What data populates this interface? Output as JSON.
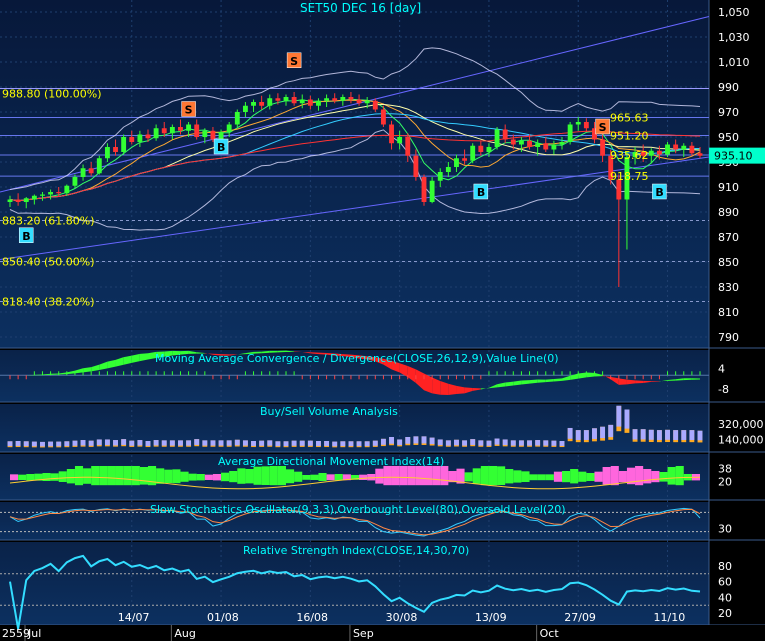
{
  "colors": {
    "bg_top": "#0a1a3a",
    "bg_bottom": "#0b2a55",
    "grid": "#2a4a7a",
    "title_text": "#00ffff",
    "axis_text": "#ffffff",
    "fib_text": "#ffff00",
    "up_candle": "#33ff33",
    "down_candle": "#ff3333",
    "channel": "#6666ff",
    "last_price_bg": "#00ffcc",
    "buy_label_bg": "#33ddff",
    "sell_label_bg": "#ff7733"
  },
  "chart_data": [
    {
      "type": "candlestick",
      "title": "SET50 DEC 16   [day]",
      "last_price": "935.10",
      "y_ticks": [
        "1,050",
        "1,030",
        "1,010",
        "990",
        "970",
        "950",
        "930",
        "910",
        "890",
        "870",
        "850",
        "830",
        "810",
        "790"
      ],
      "ylim": [
        780,
        1055
      ],
      "x_tick_labels": [
        "14/07",
        "01/08",
        "16/08",
        "30/08",
        "13/09",
        "27/09",
        "11/10"
      ],
      "x_month_labels": [
        "Jul",
        "Aug",
        "Sep",
        "Oct"
      ],
      "x_year_label": "2559",
      "fibonacci_levels": [
        {
          "label": "988.80 (100.00%)",
          "value": 988.8
        },
        {
          "label": "883.20 (61.80%)",
          "value": 883.2
        },
        {
          "label": "850.40 (50.00%)",
          "value": 850.4
        },
        {
          "label": "818.40 (38.20%)",
          "value": 818.4
        }
      ],
      "price_labels": [
        {
          "label": "965.63",
          "value": 965.63
        },
        {
          "label": "951.20",
          "value": 951.2
        },
        {
          "label": "935.62",
          "value": 935.62
        },
        {
          "label": "918.75",
          "value": 918.75
        }
      ],
      "signals": [
        {
          "label": "B",
          "bar": 2,
          "value": 871
        },
        {
          "label": "S",
          "bar": 35,
          "value": 1011
        },
        {
          "label": "B",
          "bar": 26,
          "value": 942
        },
        {
          "label": "S",
          "bar": 22,
          "value": 972
        },
        {
          "label": "B",
          "bar": 58,
          "value": 906
        },
        {
          "label": "S",
          "bar": 73,
          "value": 958
        },
        {
          "label": "B",
          "bar": 80,
          "value": 906
        }
      ],
      "candles": [
        {
          "o": 898,
          "h": 903,
          "l": 894,
          "c": 900
        },
        {
          "o": 900,
          "h": 905,
          "l": 895,
          "c": 898
        },
        {
          "o": 898,
          "h": 902,
          "l": 893,
          "c": 901
        },
        {
          "o": 900,
          "h": 904,
          "l": 896,
          "c": 903
        },
        {
          "o": 903,
          "h": 906,
          "l": 899,
          "c": 904
        },
        {
          "o": 904,
          "h": 908,
          "l": 900,
          "c": 906
        },
        {
          "o": 906,
          "h": 910,
          "l": 902,
          "c": 905
        },
        {
          "o": 905,
          "h": 912,
          "l": 903,
          "c": 911
        },
        {
          "o": 911,
          "h": 920,
          "l": 909,
          "c": 918
        },
        {
          "o": 918,
          "h": 928,
          "l": 915,
          "c": 925
        },
        {
          "o": 925,
          "h": 930,
          "l": 919,
          "c": 921
        },
        {
          "o": 921,
          "h": 935,
          "l": 920,
          "c": 933
        },
        {
          "o": 933,
          "h": 945,
          "l": 930,
          "c": 942
        },
        {
          "o": 942,
          "h": 948,
          "l": 935,
          "c": 938
        },
        {
          "o": 938,
          "h": 952,
          "l": 936,
          "c": 950
        },
        {
          "o": 950,
          "h": 955,
          "l": 944,
          "c": 946
        },
        {
          "o": 946,
          "h": 955,
          "l": 942,
          "c": 952
        },
        {
          "o": 952,
          "h": 956,
          "l": 946,
          "c": 949
        },
        {
          "o": 949,
          "h": 960,
          "l": 947,
          "c": 957
        },
        {
          "o": 957,
          "h": 962,
          "l": 950,
          "c": 953
        },
        {
          "o": 953,
          "h": 960,
          "l": 948,
          "c": 958
        },
        {
          "o": 958,
          "h": 964,
          "l": 952,
          "c": 955
        },
        {
          "o": 955,
          "h": 962,
          "l": 950,
          "c": 960
        },
        {
          "o": 960,
          "h": 964,
          "l": 948,
          "c": 950
        },
        {
          "o": 950,
          "h": 957,
          "l": 945,
          "c": 955
        },
        {
          "o": 955,
          "h": 958,
          "l": 946,
          "c": 948
        },
        {
          "o": 948,
          "h": 956,
          "l": 944,
          "c": 954
        },
        {
          "o": 954,
          "h": 962,
          "l": 950,
          "c": 960
        },
        {
          "o": 960,
          "h": 972,
          "l": 958,
          "c": 970
        },
        {
          "o": 970,
          "h": 978,
          "l": 966,
          "c": 975
        },
        {
          "o": 975,
          "h": 980,
          "l": 970,
          "c": 978
        },
        {
          "o": 978,
          "h": 983,
          "l": 972,
          "c": 975
        },
        {
          "o": 975,
          "h": 984,
          "l": 972,
          "c": 981
        },
        {
          "o": 981,
          "h": 985,
          "l": 976,
          "c": 979
        },
        {
          "o": 979,
          "h": 984,
          "l": 975,
          "c": 982
        },
        {
          "o": 982,
          "h": 986,
          "l": 975,
          "c": 977
        },
        {
          "o": 977,
          "h": 984,
          "l": 973,
          "c": 980
        },
        {
          "o": 980,
          "h": 983,
          "l": 972,
          "c": 975
        },
        {
          "o": 975,
          "h": 981,
          "l": 971,
          "c": 979
        },
        {
          "o": 979,
          "h": 984,
          "l": 974,
          "c": 981
        },
        {
          "o": 981,
          "h": 985,
          "l": 977,
          "c": 979
        },
        {
          "o": 979,
          "h": 984,
          "l": 975,
          "c": 982
        },
        {
          "o": 982,
          "h": 986,
          "l": 977,
          "c": 980
        },
        {
          "o": 980,
          "h": 984,
          "l": 975,
          "c": 977
        },
        {
          "o": 977,
          "h": 982,
          "l": 973,
          "c": 979
        },
        {
          "o": 979,
          "h": 981,
          "l": 970,
          "c": 972
        },
        {
          "o": 972,
          "h": 975,
          "l": 958,
          "c": 960
        },
        {
          "o": 960,
          "h": 963,
          "l": 940,
          "c": 945
        },
        {
          "o": 945,
          "h": 955,
          "l": 940,
          "c": 950
        },
        {
          "o": 950,
          "h": 953,
          "l": 930,
          "c": 935
        },
        {
          "o": 935,
          "h": 940,
          "l": 915,
          "c": 918
        },
        {
          "o": 918,
          "h": 920,
          "l": 895,
          "c": 898
        },
        {
          "o": 898,
          "h": 918,
          "l": 897,
          "c": 915
        },
        {
          "o": 915,
          "h": 925,
          "l": 910,
          "c": 922
        },
        {
          "o": 922,
          "h": 930,
          "l": 918,
          "c": 926
        },
        {
          "o": 926,
          "h": 936,
          "l": 922,
          "c": 933
        },
        {
          "o": 933,
          "h": 940,
          "l": 928,
          "c": 931
        },
        {
          "o": 931,
          "h": 945,
          "l": 929,
          "c": 943
        },
        {
          "o": 943,
          "h": 947,
          "l": 935,
          "c": 938
        },
        {
          "o": 938,
          "h": 945,
          "l": 934,
          "c": 942
        },
        {
          "o": 942,
          "h": 958,
          "l": 940,
          "c": 956
        },
        {
          "o": 956,
          "h": 960,
          "l": 945,
          "c": 948
        },
        {
          "o": 948,
          "h": 952,
          "l": 940,
          "c": 944
        },
        {
          "o": 944,
          "h": 950,
          "l": 938,
          "c": 947
        },
        {
          "o": 947,
          "h": 952,
          "l": 940,
          "c": 942
        },
        {
          "o": 942,
          "h": 948,
          "l": 935,
          "c": 945
        },
        {
          "o": 945,
          "h": 950,
          "l": 938,
          "c": 940
        },
        {
          "o": 940,
          "h": 947,
          "l": 936,
          "c": 944
        },
        {
          "o": 944,
          "h": 950,
          "l": 940,
          "c": 946
        },
        {
          "o": 946,
          "h": 962,
          "l": 944,
          "c": 960
        },
        {
          "o": 960,
          "h": 966,
          "l": 955,
          "c": 962
        },
        {
          "o": 962,
          "h": 965,
          "l": 954,
          "c": 957
        },
        {
          "o": 957,
          "h": 962,
          "l": 945,
          "c": 948
        },
        {
          "o": 948,
          "h": 952,
          "l": 930,
          "c": 935
        },
        {
          "o": 935,
          "h": 940,
          "l": 912,
          "c": 916
        },
        {
          "o": 916,
          "h": 920,
          "l": 830,
          "c": 900
        },
        {
          "o": 900,
          "h": 938,
          "l": 860,
          "c": 934
        },
        {
          "o": 934,
          "h": 942,
          "l": 928,
          "c": 938
        },
        {
          "o": 938,
          "h": 944,
          "l": 930,
          "c": 935
        },
        {
          "o": 935,
          "h": 941,
          "l": 929,
          "c": 939
        },
        {
          "o": 939,
          "h": 943,
          "l": 932,
          "c": 936
        },
        {
          "o": 936,
          "h": 946,
          "l": 934,
          "c": 944
        },
        {
          "o": 944,
          "h": 948,
          "l": 937,
          "c": 940
        },
        {
          "o": 940,
          "h": 945,
          "l": 934,
          "c": 943
        },
        {
          "o": 943,
          "h": 946,
          "l": 935,
          "c": 937
        },
        {
          "o": 937,
          "h": 942,
          "l": 933,
          "c": 935
        }
      ]
    },
    {
      "type": "area",
      "title": "Moving Average Convergence / Divergence(CLOSE,26,12,9),Value Line(0)",
      "y_ticks": [
        "4",
        "-8"
      ],
      "ylim": [
        -12,
        10
      ]
    },
    {
      "type": "bar",
      "title": "Buy/Sell Volume Analysis",
      "y_ticks": [
        "320,000",
        "140,000"
      ],
      "ylim": [
        0,
        500000
      ]
    },
    {
      "type": "area",
      "title": "Average Directional Movement Index(14)",
      "y_ticks": [
        "38",
        "20"
      ],
      "ylim": [
        0,
        50
      ]
    },
    {
      "type": "line",
      "title": "Slow Stochastics Oscillator(9,3,3),Overbought Level(80),Oversold Level(20)",
      "y_ticks": [
        "30"
      ],
      "ylim": [
        0,
        100
      ]
    },
    {
      "type": "line",
      "title": "Relative Strength Index(CLOSE,14,30,70)",
      "y_ticks": [
        "80",
        "60",
        "40",
        "20"
      ],
      "ylim": [
        10,
        90
      ]
    }
  ]
}
